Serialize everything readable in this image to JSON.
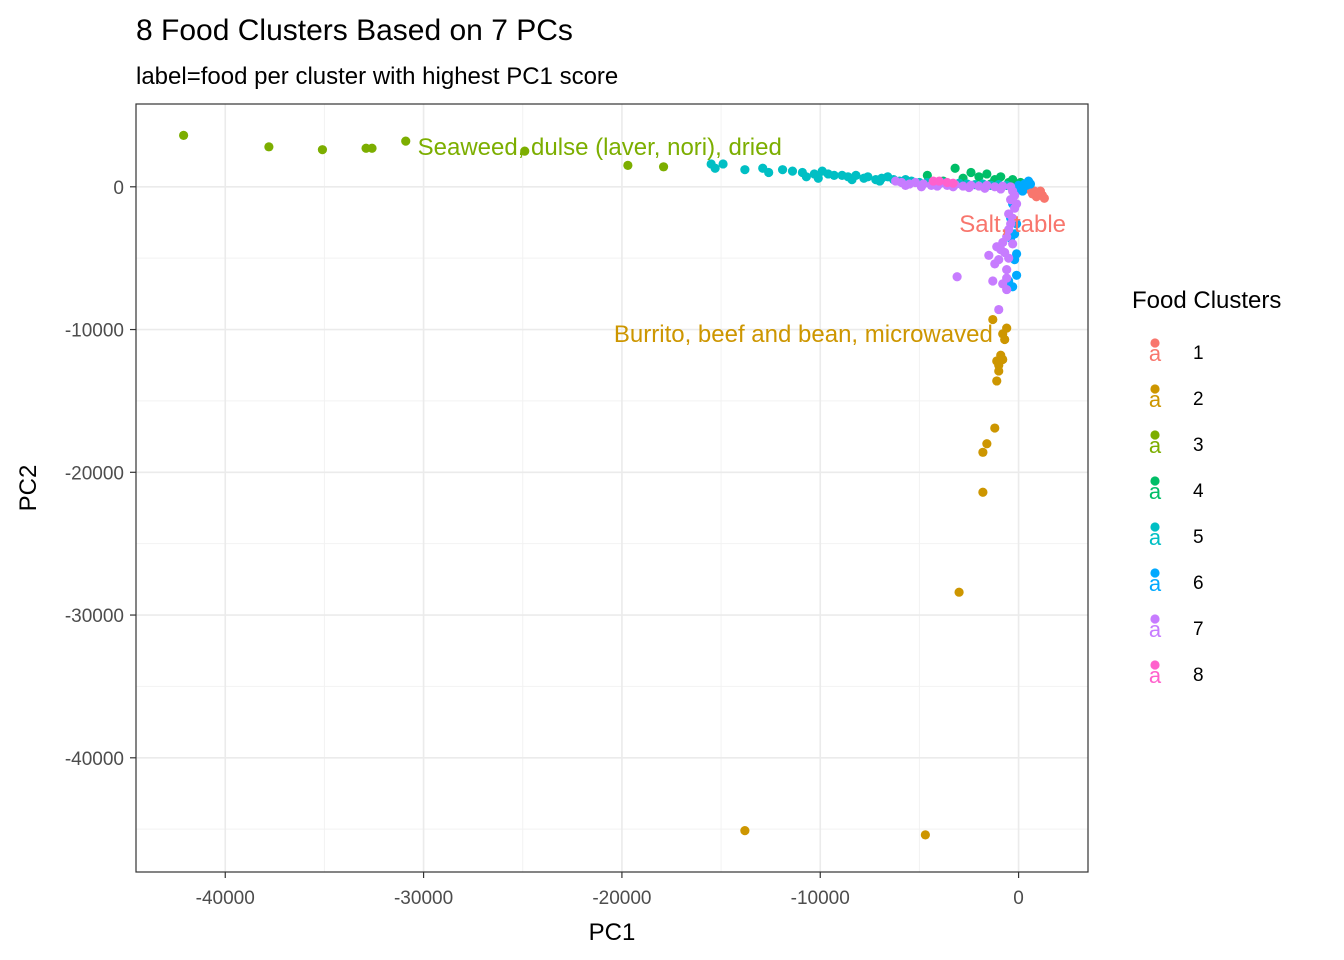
{
  "chart_data": {
    "type": "scatter",
    "title": "8 Food Clusters Based on 7 PCs",
    "subtitle": "label=food per cluster with highest PC1 score",
    "xlabel": "PC1",
    "ylabel": "PC2",
    "xlim": [
      -44500,
      3500
    ],
    "ylim": [
      -48000,
      5800
    ],
    "x_ticks": [
      -40000,
      -30000,
      -20000,
      -10000,
      0
    ],
    "x_tick_labels": [
      "-40000",
      "-30000",
      "-20000",
      "-10000",
      "0"
    ],
    "y_ticks": [
      0,
      -10000,
      -20000,
      -30000,
      -40000
    ],
    "y_tick_labels": [
      "0",
      "-10000",
      "-20000",
      "-30000",
      "-40000"
    ],
    "grid": true,
    "legend": {
      "title": "Food Clusters",
      "position": "right",
      "key_glyph": "a"
    },
    "series": [
      {
        "name": "1",
        "color": "#F8766D",
        "points": [
          [
            1200,
            -600
          ],
          [
            1000,
            -400
          ],
          [
            800,
            -300
          ],
          [
            600,
            -200
          ],
          [
            900,
            -700
          ],
          [
            1300,
            -800
          ],
          [
            700,
            -500
          ],
          [
            500,
            -150
          ],
          [
            1100,
            -300
          ],
          [
            400,
            -100
          ],
          [
            850,
            -550
          ],
          [
            300,
            0
          ]
        ]
      },
      {
        "name": "2",
        "color": "#CD9600",
        "points": [
          [
            -13800,
            -45100
          ],
          [
            -4700,
            -45400
          ],
          [
            -3000,
            -28400
          ],
          [
            -1800,
            -21400
          ],
          [
            -1200,
            -16900
          ],
          [
            -1800,
            -18600
          ],
          [
            -1600,
            -18000
          ],
          [
            -1100,
            -13600
          ],
          [
            -1000,
            -12500
          ],
          [
            -900,
            -11800
          ],
          [
            -1100,
            -12200
          ],
          [
            -800,
            -10300
          ],
          [
            -700,
            -10700
          ],
          [
            -600,
            -9900
          ],
          [
            -1300,
            -9300
          ],
          [
            -1000,
            -12900
          ],
          [
            -800,
            -12100
          ]
        ]
      },
      {
        "name": "3",
        "color": "#7CAE00",
        "points": [
          [
            -42100,
            3600
          ],
          [
            -37800,
            2800
          ],
          [
            -35100,
            2600
          ],
          [
            -32900,
            2700
          ],
          [
            -32600,
            2700
          ],
          [
            -30900,
            3200
          ],
          [
            -24900,
            2500
          ],
          [
            -19700,
            1500
          ],
          [
            -17900,
            1400
          ]
        ]
      },
      {
        "name": "4",
        "color": "#00BE67",
        "points": [
          [
            -3200,
            1300
          ],
          [
            -2400,
            1000
          ],
          [
            -2000,
            700
          ],
          [
            -1600,
            900
          ],
          [
            -1200,
            500
          ],
          [
            -900,
            700
          ],
          [
            -500,
            300
          ],
          [
            -300,
            500
          ],
          [
            -100,
            200
          ],
          [
            -2800,
            600
          ],
          [
            -1400,
            200
          ],
          [
            -600,
            100
          ],
          [
            100,
            300
          ],
          [
            -4600,
            800
          ],
          [
            -3800,
            400
          ]
        ]
      },
      {
        "name": "5",
        "color": "#00BFC4",
        "points": [
          [
            -15500,
            1600
          ],
          [
            -15300,
            1300
          ],
          [
            -14900,
            1600
          ],
          [
            -13800,
            1200
          ],
          [
            -12900,
            1300
          ],
          [
            -12600,
            1000
          ],
          [
            -11400,
            1100
          ],
          [
            -10900,
            1000
          ],
          [
            -10700,
            700
          ],
          [
            -10300,
            900
          ],
          [
            -9900,
            1100
          ],
          [
            -9600,
            900
          ],
          [
            -9300,
            800
          ],
          [
            -8900,
            800
          ],
          [
            -8600,
            700
          ],
          [
            -8200,
            800
          ],
          [
            -7800,
            600
          ],
          [
            -7600,
            700
          ],
          [
            -7200,
            500
          ],
          [
            -6900,
            600
          ],
          [
            -6600,
            700
          ],
          [
            -6300,
            500
          ],
          [
            -6000,
            400
          ],
          [
            -5700,
            500
          ],
          [
            -5400,
            400
          ],
          [
            -5000,
            300
          ],
          [
            -4600,
            300
          ],
          [
            -4200,
            200
          ],
          [
            -3800,
            300
          ],
          [
            -3400,
            200
          ],
          [
            -3000,
            250
          ],
          [
            -2600,
            200
          ],
          [
            -2200,
            150
          ],
          [
            -1800,
            200
          ],
          [
            -1400,
            100
          ],
          [
            -1000,
            150
          ],
          [
            -600,
            100
          ],
          [
            -11900,
            1200
          ],
          [
            -10100,
            600
          ],
          [
            -8400,
            500
          ],
          [
            -7000,
            400
          ]
        ]
      },
      {
        "name": "6",
        "color": "#00A9FF",
        "points": [
          [
            0,
            100
          ],
          [
            300,
            200
          ],
          [
            500,
            400
          ],
          [
            100,
            -100
          ],
          [
            -200,
            -500
          ],
          [
            -300,
            -1200
          ],
          [
            -100,
            -2600
          ],
          [
            -200,
            -3300
          ],
          [
            -400,
            -3600
          ],
          [
            -100,
            -6200
          ],
          [
            -500,
            -6600
          ],
          [
            -300,
            -7000
          ],
          [
            -200,
            -5100
          ],
          [
            -100,
            -4700
          ],
          [
            200,
            -300
          ],
          [
            400,
            100
          ],
          [
            600,
            200
          ],
          [
            -400,
            -2200
          ]
        ]
      },
      {
        "name": "7",
        "color": "#C77CFF",
        "points": [
          [
            -3100,
            -6300
          ],
          [
            -1500,
            -4800
          ],
          [
            -1200,
            -5400
          ],
          [
            -1000,
            -5100
          ],
          [
            -1100,
            -4200
          ],
          [
            -800,
            -3900
          ],
          [
            -600,
            -3500
          ],
          [
            -500,
            -3000
          ],
          [
            -400,
            -2600
          ],
          [
            -300,
            -2200
          ],
          [
            -500,
            -1900
          ],
          [
            -200,
            -1500
          ],
          [
            -100,
            -1200
          ],
          [
            -400,
            -900
          ],
          [
            -200,
            -600
          ],
          [
            -300,
            -300
          ],
          [
            -600,
            -6400
          ],
          [
            -800,
            -6800
          ],
          [
            -1300,
            -6600
          ],
          [
            -1000,
            -8600
          ],
          [
            -600,
            -5800
          ],
          [
            -700,
            -4600
          ],
          [
            -900,
            -4400
          ],
          [
            -300,
            -4000
          ],
          [
            -500,
            -5000
          ],
          [
            -600,
            -7200
          ],
          [
            -6200,
            400
          ],
          [
            -5900,
            300
          ],
          [
            -5500,
            200
          ],
          [
            -5200,
            300
          ],
          [
            -4800,
            200
          ],
          [
            -4400,
            100
          ],
          [
            -4000,
            200
          ],
          [
            -3600,
            100
          ],
          [
            -3200,
            150
          ],
          [
            -2800,
            50
          ],
          [
            -2400,
            100
          ],
          [
            -2000,
            50
          ],
          [
            -1600,
            100
          ],
          [
            -1200,
            0
          ],
          [
            -800,
            50
          ],
          [
            -400,
            0
          ],
          [
            -5700,
            100
          ],
          [
            -4900,
            0
          ],
          [
            -4100,
            50
          ],
          [
            -3300,
            0
          ],
          [
            -2500,
            -50
          ],
          [
            -1700,
            -100
          ],
          [
            -900,
            -150
          ]
        ]
      },
      {
        "name": "8",
        "color": "#FF61CC",
        "points": [
          [
            -4300,
            400
          ],
          [
            -4000,
            400
          ],
          [
            -3600,
            300
          ],
          [
            -3300,
            250
          ]
        ]
      }
    ],
    "annotations": [
      {
        "text": "Seaweed, dulse (laver, nori), dried",
        "x": -30300,
        "y": 2800,
        "color": "#7CAE00",
        "anchor": "start"
      },
      {
        "text": "Salt, table",
        "x": -300,
        "y": -2600,
        "color": "#F8766D",
        "anchor": "middle"
      },
      {
        "text": "Burrito, beef and bean, microwaved",
        "x": -1300,
        "y": -10300,
        "color": "#CD9600",
        "anchor": "end"
      }
    ]
  }
}
